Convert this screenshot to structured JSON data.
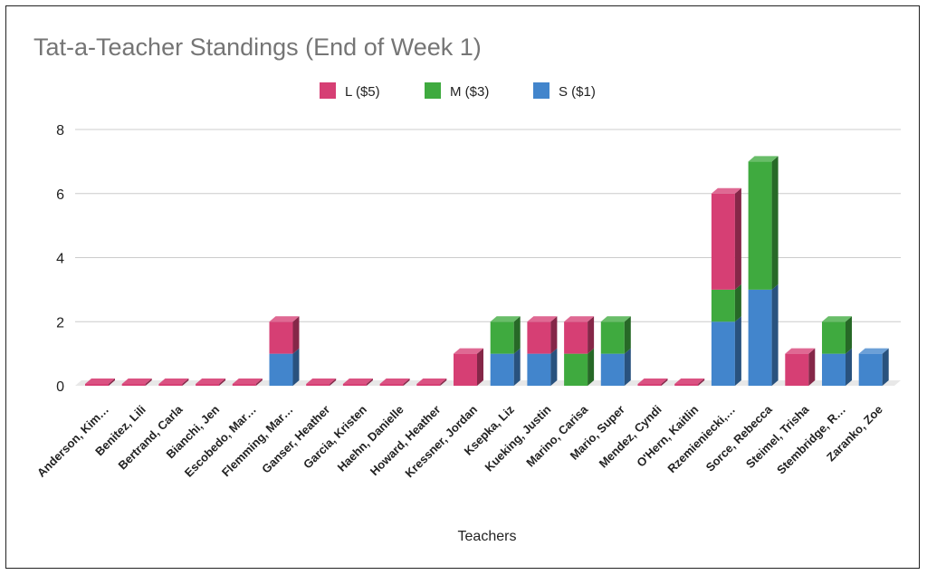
{
  "chart_data": {
    "type": "bar",
    "stacked": true,
    "three_d": true,
    "title": "Tat-a-Teacher Standings (End of Week 1)",
    "xlabel": "Teachers",
    "ylabel": "",
    "ylim": [
      0,
      8
    ],
    "yticks": [
      0,
      2,
      4,
      6,
      8
    ],
    "grid": true,
    "legend_position": "top",
    "categories": [
      "Anderson, Kim…",
      "Benitez, Lili",
      "Bertrand, Carla",
      "Bianchi, Jen",
      "Escobedo, Mar…",
      "Flemming, Mar…",
      "Ganser, Heather",
      "Garcia, Kristen",
      "Haehn, Danielle",
      "Howard, Heather",
      "Kressner, Jordan",
      "Ksepka, Liz",
      "Kueking, Justin",
      "Marino, Carisa",
      "Mario, Super",
      "Mendez, Cyndi",
      "O'Hern, Kaitlin",
      "Rzemieniecki,…",
      "Sorce, Rebecca",
      "Steimel, Trisha",
      "Stembridge, R…",
      "Zaranko, Zoe"
    ],
    "series": [
      {
        "name": "S ($1)",
        "color": "#4285cc",
        "values": [
          0,
          0,
          0,
          0,
          0,
          1,
          0,
          0,
          0,
          0,
          0,
          1,
          1,
          0,
          1,
          0,
          0,
          2,
          3,
          0,
          1,
          1
        ]
      },
      {
        "name": "M ($3)",
        "color": "#3faa3f",
        "values": [
          0,
          0,
          0,
          0,
          0,
          0,
          0,
          0,
          0,
          0,
          0,
          1,
          0,
          1,
          1,
          0,
          0,
          1,
          4,
          0,
          1,
          0
        ]
      },
      {
        "name": "L ($5)",
        "color": "#d63f74",
        "values": [
          0,
          0,
          0,
          0,
          0,
          1,
          0,
          0,
          0,
          0,
          1,
          0,
          1,
          1,
          0,
          0,
          0,
          3,
          0,
          1,
          0,
          0
        ]
      }
    ],
    "legend_order": [
      "L ($5)",
      "M ($3)",
      "S ($1)"
    ]
  }
}
